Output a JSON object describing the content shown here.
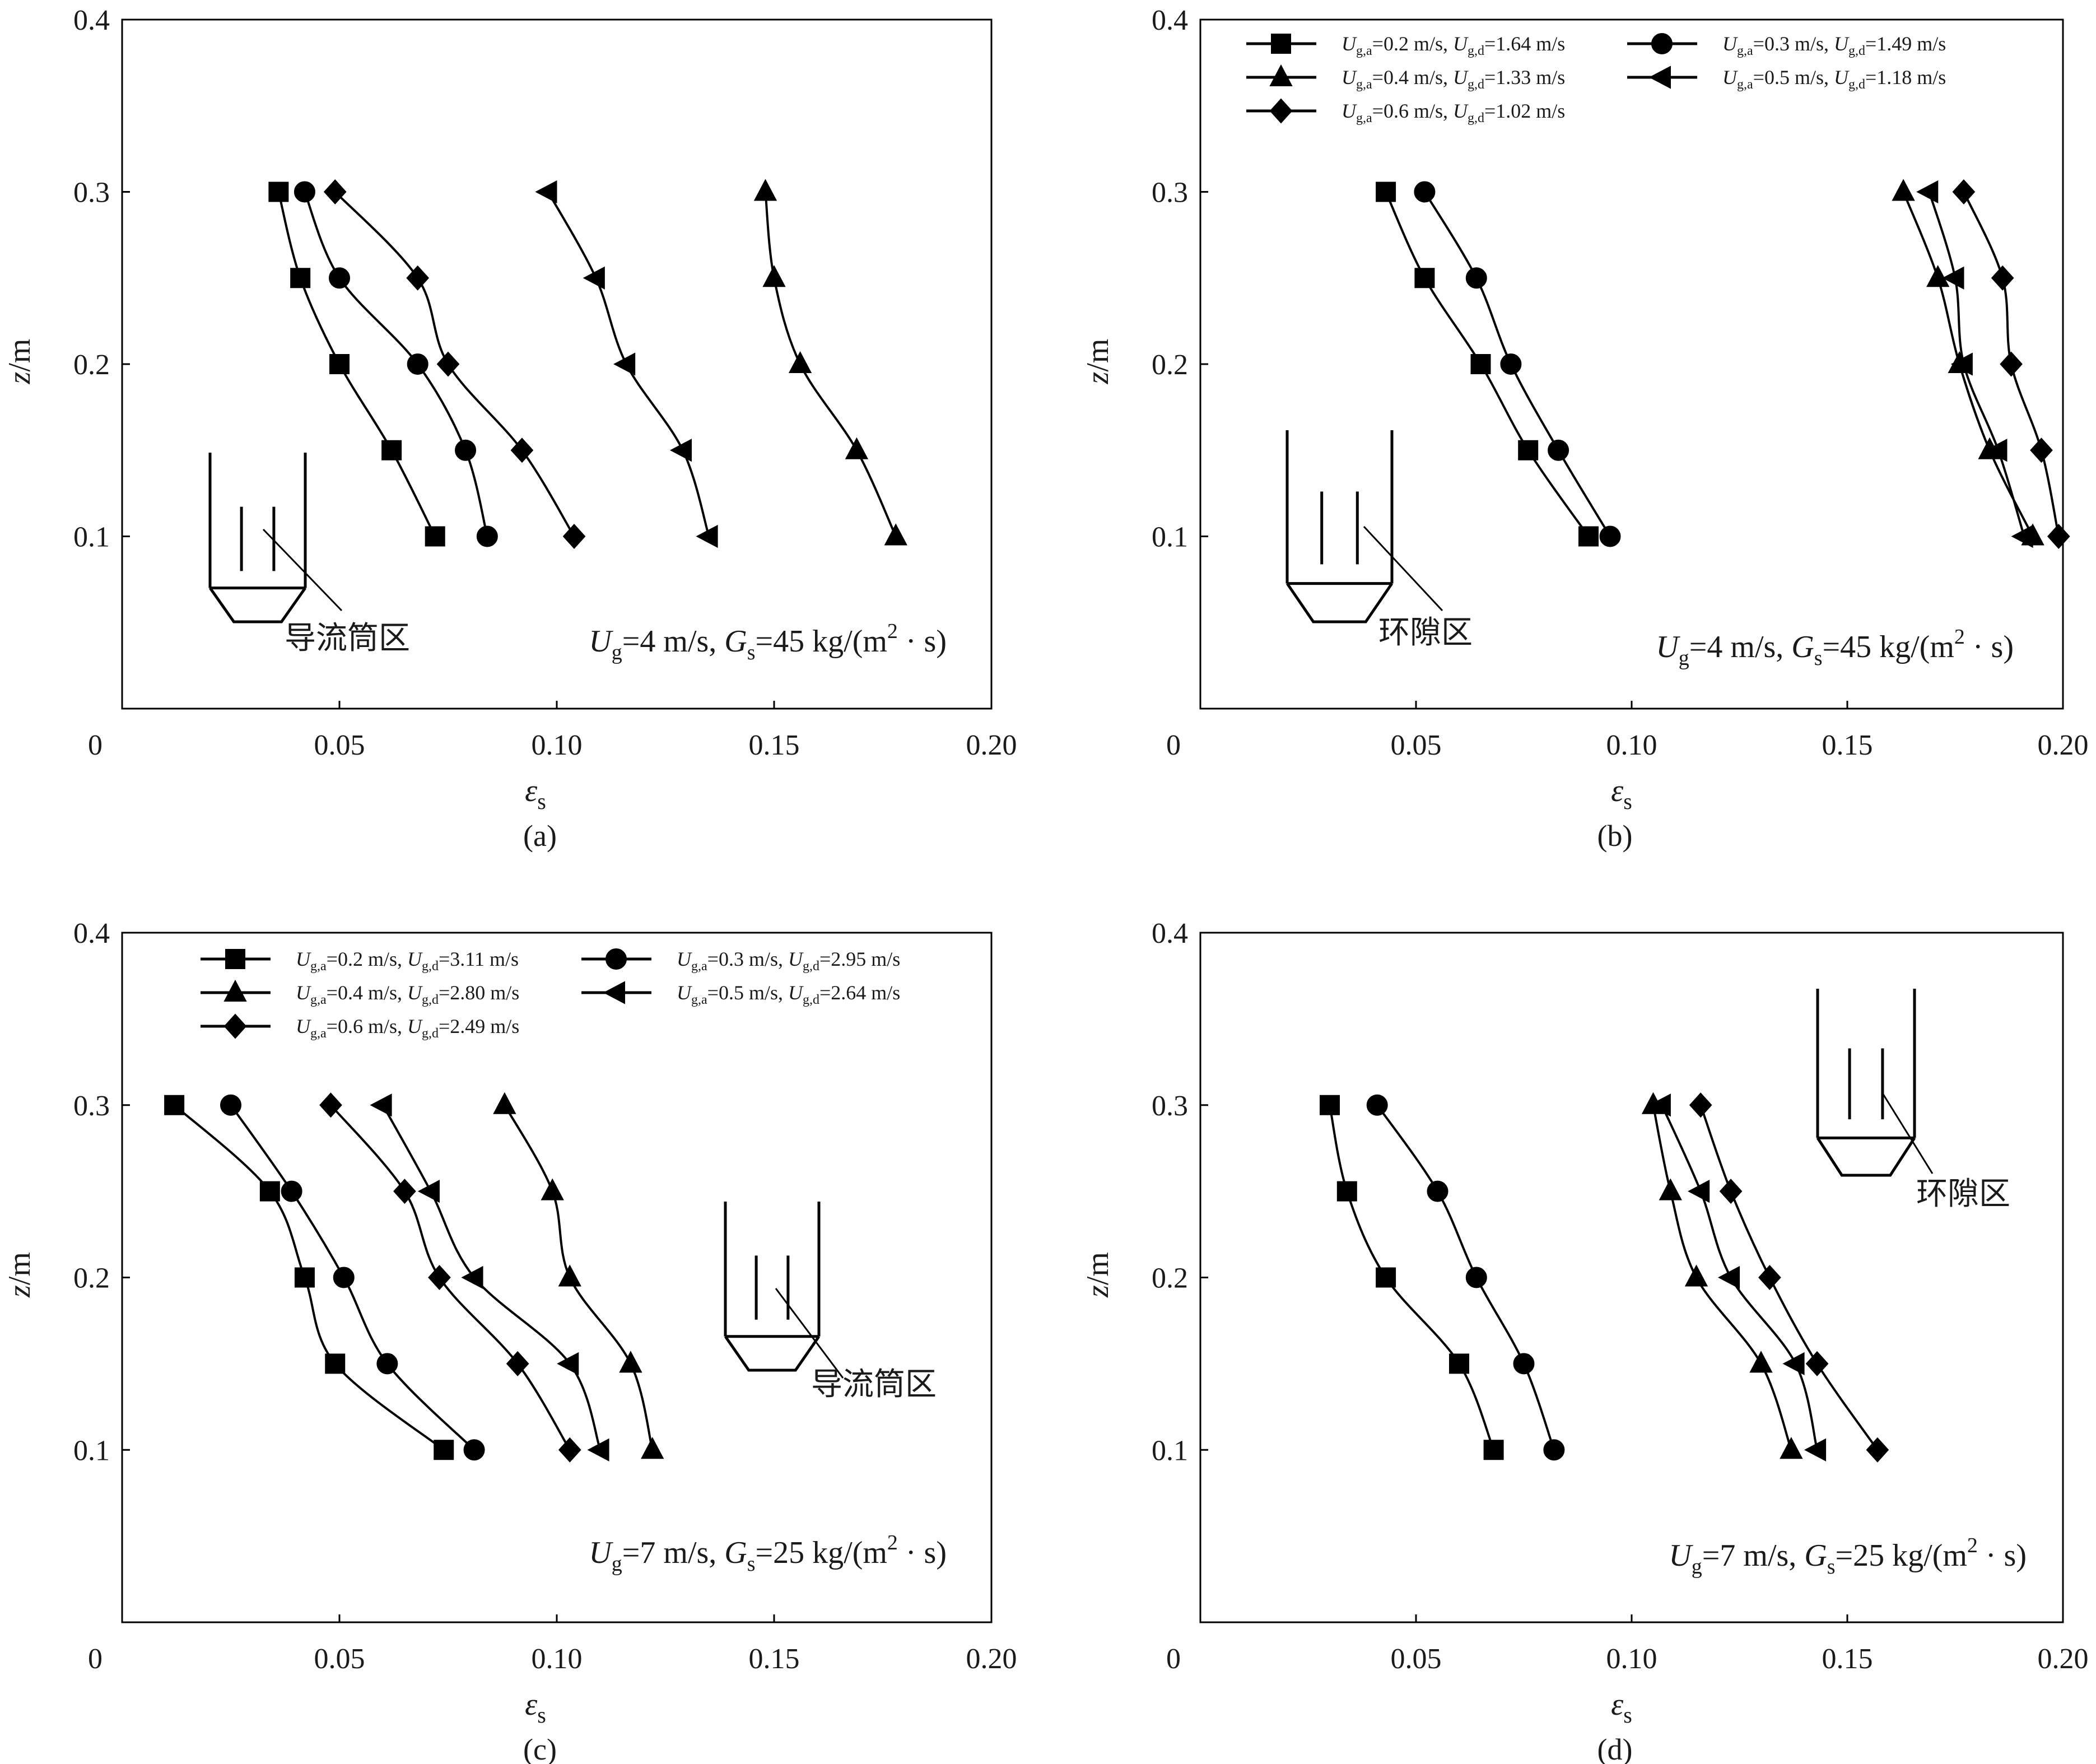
{
  "chart_data": [
    {
      "id": "a",
      "type": "line",
      "panel_label": "(a)",
      "xlabel": "ε",
      "xlabel_sub": "s",
      "ylabel": "z/m",
      "xlim": [
        0,
        0.2
      ],
      "ylim": [
        0,
        0.4
      ],
      "x_ticks": [
        "0",
        "0.05",
        "0.10",
        "0.15",
        "0.20"
      ],
      "x_tick_values": [
        0,
        0.05,
        0.1,
        0.15,
        0.2
      ],
      "y_ticks": [
        "0.1",
        "0.2",
        "0.3",
        "0.4"
      ],
      "y_tick_values": [
        0.1,
        0.2,
        0.3,
        0.4
      ],
      "condition": {
        "u_sym": "U",
        "u_sub": "g",
        "u_val": "=4 m/s, ",
        "g_sym": "G",
        "g_sub": "s",
        "g_val": "=45 kg/(m",
        "sup": "2",
        "tail": " · s)"
      },
      "region_label": "导流筒区",
      "legend": null,
      "series": [
        {
          "name": "Ug,a=0.2 m/s",
          "marker": "square",
          "x": [
            0.072,
            0.062,
            0.05,
            0.041,
            0.036
          ],
          "y": [
            0.1,
            0.15,
            0.2,
            0.25,
            0.3
          ]
        },
        {
          "name": "Ug,a=0.3 m/s",
          "marker": "circle",
          "x": [
            0.084,
            0.079,
            0.068,
            0.05,
            0.042
          ],
          "y": [
            0.1,
            0.15,
            0.2,
            0.25,
            0.3
          ]
        },
        {
          "name": "Ug,a=0.4 m/s",
          "marker": "triangle",
          "x": [
            0.178,
            0.169,
            0.156,
            0.15,
            0.148
          ],
          "y": [
            0.1,
            0.15,
            0.2,
            0.25,
            0.3
          ]
        },
        {
          "name": "Ug,a=0.5 m/s",
          "marker": "left-triangle",
          "x": [
            0.135,
            0.129,
            0.116,
            0.109,
            0.098
          ],
          "y": [
            0.1,
            0.15,
            0.2,
            0.25,
            0.3
          ]
        },
        {
          "name": "Ug,a=0.6 m/s",
          "marker": "diamond",
          "x": [
            0.104,
            0.092,
            0.075,
            0.068,
            0.049
          ],
          "y": [
            0.1,
            0.15,
            0.2,
            0.25,
            0.3
          ]
        }
      ]
    },
    {
      "id": "b",
      "type": "line",
      "panel_label": "(b)",
      "xlabel": "ε",
      "xlabel_sub": "s",
      "ylabel": "z/m",
      "xlim": [
        0,
        0.2
      ],
      "ylim": [
        0,
        0.4
      ],
      "x_ticks": [
        "0",
        "0.05",
        "0.10",
        "0.15",
        "0.20"
      ],
      "x_tick_values": [
        0,
        0.05,
        0.1,
        0.15,
        0.2
      ],
      "y_ticks": [
        "0.1",
        "0.2",
        "0.3",
        "0.4"
      ],
      "y_tick_values": [
        0.1,
        0.2,
        0.3,
        0.4
      ],
      "condition": {
        "u_sym": "U",
        "u_sub": "g",
        "u_val": "=4 m/s, ",
        "g_sym": "G",
        "g_sub": "s",
        "g_val": "=45 kg/(m",
        "sup": "2",
        "tail": " · s)"
      },
      "region_label": "环隙区",
      "legend": [
        {
          "marker": "square",
          "a": "=0.2 m/s, ",
          "d": "=1.64 m/s"
        },
        {
          "marker": "circle",
          "a": "=0.3 m/s, ",
          "d": "=1.49 m/s"
        },
        {
          "marker": "triangle",
          "a": "=0.4 m/s, ",
          "d": "=1.33 m/s"
        },
        {
          "marker": "left-triangle",
          "a": "=0.5 m/s, ",
          "d": "=1.18 m/s"
        },
        {
          "marker": "diamond",
          "a": "=0.6 m/s, ",
          "d": "=1.02 m/s"
        }
      ],
      "legend_sym": "U",
      "legend_sub_a": "g,a",
      "legend_sub_d": "g,d",
      "series": [
        {
          "name": "Ug,a=0.2 m/s, Ug,d=1.64 m/s",
          "marker": "square",
          "x": [
            0.09,
            0.076,
            0.065,
            0.052,
            0.043
          ],
          "y": [
            0.1,
            0.15,
            0.2,
            0.25,
            0.3
          ]
        },
        {
          "name": "Ug,a=0.3 m/s, Ug,d=1.49 m/s",
          "marker": "circle",
          "x": [
            0.095,
            0.083,
            0.072,
            0.064,
            0.052
          ],
          "y": [
            0.1,
            0.15,
            0.2,
            0.25,
            0.3
          ]
        },
        {
          "name": "Ug,a=0.4 m/s, Ug,d=1.33 m/s",
          "marker": "triangle",
          "x": [
            0.193,
            0.183,
            0.176,
            0.171,
            0.163
          ],
          "y": [
            0.1,
            0.15,
            0.2,
            0.25,
            0.3
          ]
        },
        {
          "name": "Ug,a=0.5 m/s, Ug,d=1.18 m/s",
          "marker": "left-triangle",
          "x": [
            0.191,
            0.185,
            0.177,
            0.175,
            0.169
          ],
          "y": [
            0.1,
            0.15,
            0.2,
            0.25,
            0.3
          ]
        },
        {
          "name": "Ug,a=0.6 m/s, Ug,d=1.02 m/s",
          "marker": "diamond",
          "x": [
            0.199,
            0.195,
            0.188,
            0.186,
            0.177
          ],
          "y": [
            0.1,
            0.15,
            0.2,
            0.25,
            0.3
          ]
        }
      ]
    },
    {
      "id": "c",
      "type": "line",
      "panel_label": "(c)",
      "xlabel": "ε",
      "xlabel_sub": "s",
      "ylabel": "z/m",
      "xlim": [
        0,
        0.2
      ],
      "ylim": [
        0,
        0.4
      ],
      "x_ticks": [
        "0",
        "0.05",
        "0.10",
        "0.15",
        "0.20"
      ],
      "x_tick_values": [
        0,
        0.05,
        0.1,
        0.15,
        0.2
      ],
      "y_ticks": [
        "0.1",
        "0.2",
        "0.3",
        "0.4"
      ],
      "y_tick_values": [
        0.1,
        0.2,
        0.3,
        0.4
      ],
      "condition": {
        "u_sym": "U",
        "u_sub": "g",
        "u_val": "=7 m/s, ",
        "g_sym": "G",
        "g_sub": "s",
        "g_val": "=25 kg/(m",
        "sup": "2",
        "tail": " · s)"
      },
      "region_label": "导流筒区",
      "legend": [
        {
          "marker": "square",
          "a": "=0.2 m/s, ",
          "d": "=3.11 m/s"
        },
        {
          "marker": "circle",
          "a": "=0.3 m/s, ",
          "d": "=2.95 m/s"
        },
        {
          "marker": "triangle",
          "a": "=0.4 m/s, ",
          "d": "=2.80 m/s"
        },
        {
          "marker": "left-triangle",
          "a": "=0.5 m/s, ",
          "d": "=2.64 m/s"
        },
        {
          "marker": "diamond",
          "a": "=0.6 m/s, ",
          "d": "=2.49 m/s"
        }
      ],
      "legend_sym": "U",
      "legend_sub_a": "g,a",
      "legend_sub_d": "g,d",
      "series": [
        {
          "name": "Ug,a=0.2 m/s, Ug,d=3.11 m/s",
          "marker": "square",
          "x": [
            0.074,
            0.049,
            0.042,
            0.034,
            0.012
          ],
          "y": [
            0.1,
            0.15,
            0.2,
            0.25,
            0.3
          ]
        },
        {
          "name": "Ug,a=0.3 m/s, Ug,d=2.95 m/s",
          "marker": "circle",
          "x": [
            0.081,
            0.061,
            0.051,
            0.039,
            0.025
          ],
          "y": [
            0.1,
            0.15,
            0.2,
            0.25,
            0.3
          ]
        },
        {
          "name": "Ug,a=0.4 m/s, Ug,d=2.80 m/s",
          "marker": "triangle",
          "x": [
            0.122,
            0.117,
            0.103,
            0.099,
            0.088
          ],
          "y": [
            0.1,
            0.15,
            0.2,
            0.25,
            0.3
          ]
        },
        {
          "name": "Ug,a=0.5 m/s, Ug,d=2.64 m/s",
          "marker": "left-triangle",
          "x": [
            0.11,
            0.103,
            0.081,
            0.071,
            0.06
          ],
          "y": [
            0.1,
            0.15,
            0.2,
            0.25,
            0.3
          ]
        },
        {
          "name": "Ug,a=0.6 m/s, Ug,d=2.49 m/s",
          "marker": "diamond",
          "x": [
            0.103,
            0.091,
            0.073,
            0.065,
            0.048
          ],
          "y": [
            0.1,
            0.15,
            0.2,
            0.25,
            0.3
          ]
        }
      ]
    },
    {
      "id": "d",
      "type": "line",
      "panel_label": "(d)",
      "xlabel": "ε",
      "xlabel_sub": "s",
      "ylabel": "z/m",
      "xlim": [
        0,
        0.2
      ],
      "ylim": [
        0,
        0.4
      ],
      "x_ticks": [
        "0",
        "0.05",
        "0.10",
        "0.15",
        "0.20"
      ],
      "x_tick_values": [
        0,
        0.05,
        0.1,
        0.15,
        0.2
      ],
      "y_ticks": [
        "0.1",
        "0.2",
        "0.3",
        "0.4"
      ],
      "y_tick_values": [
        0.1,
        0.2,
        0.3,
        0.4
      ],
      "condition": {
        "u_sym": "U",
        "u_sub": "g",
        "u_val": "=7 m/s, ",
        "g_sym": "G",
        "g_sub": "s",
        "g_val": "=25 kg/(m",
        "sup": "2",
        "tail": " · s)"
      },
      "region_label": "环隙区",
      "legend": null,
      "series": [
        {
          "name": "Ug,a=0.2 m/s",
          "marker": "square",
          "x": [
            0.068,
            0.06,
            0.043,
            0.034,
            0.03
          ],
          "y": [
            0.1,
            0.15,
            0.2,
            0.25,
            0.3
          ]
        },
        {
          "name": "Ug,a=0.3 m/s",
          "marker": "circle",
          "x": [
            0.082,
            0.075,
            0.064,
            0.055,
            0.041
          ],
          "y": [
            0.1,
            0.15,
            0.2,
            0.25,
            0.3
          ]
        },
        {
          "name": "Ug,a=0.4 m/s",
          "marker": "triangle",
          "x": [
            0.137,
            0.13,
            0.115,
            0.109,
            0.105
          ],
          "y": [
            0.1,
            0.15,
            0.2,
            0.25,
            0.3
          ]
        },
        {
          "name": "Ug,a=0.5 m/s",
          "marker": "left-triangle",
          "x": [
            0.143,
            0.138,
            0.123,
            0.116,
            0.107
          ],
          "y": [
            0.1,
            0.15,
            0.2,
            0.25,
            0.3
          ]
        },
        {
          "name": "Ug,a=0.6 m/s",
          "marker": "diamond",
          "x": [
            0.157,
            0.143,
            0.132,
            0.123,
            0.116
          ],
          "y": [
            0.1,
            0.15,
            0.2,
            0.25,
            0.3
          ]
        }
      ]
    }
  ]
}
